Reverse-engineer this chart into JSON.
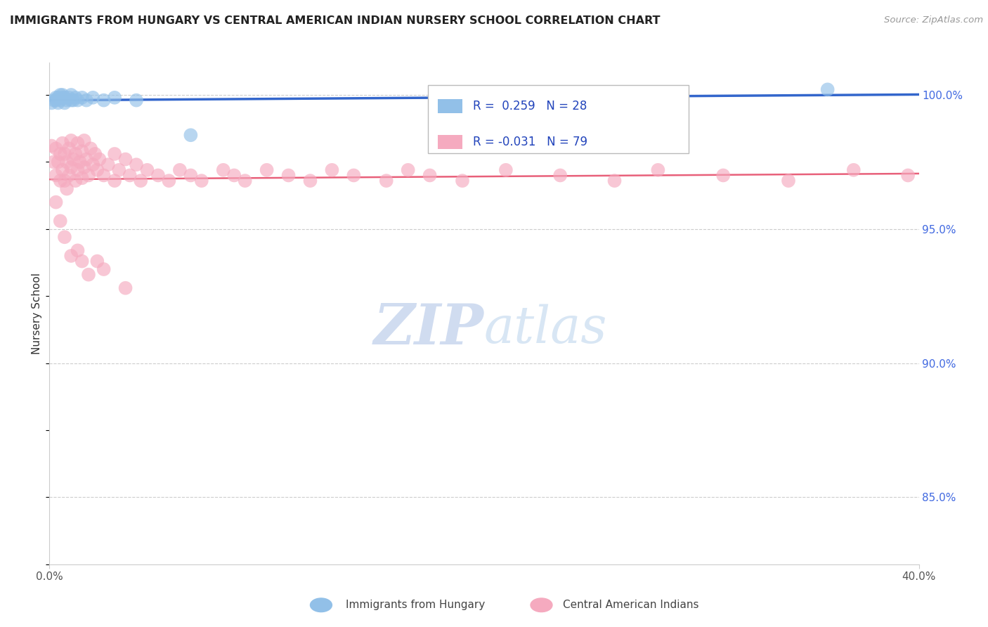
{
  "title": "IMMIGRANTS FROM HUNGARY VS CENTRAL AMERICAN INDIAN NURSERY SCHOOL CORRELATION CHART",
  "source": "Source: ZipAtlas.com",
  "ylabel": "Nursery School",
  "legend1_label": "Immigrants from Hungary",
  "legend2_label": "Central American Indians",
  "R_blue": 0.259,
  "N_blue": 28,
  "R_pink": -0.031,
  "N_pink": 79,
  "blue_color": "#92C0E8",
  "pink_color": "#F5AABF",
  "blue_line_color": "#3366CC",
  "pink_line_color": "#E8607A",
  "xmin": 0.0,
  "xmax": 0.4,
  "ymin": 0.825,
  "ymax": 1.012,
  "ytick_vals": [
    0.85,
    0.9,
    0.95,
    1.0
  ],
  "ytick_labels": [
    "85.0%",
    "90.0%",
    "95.0%",
    "100.0%"
  ],
  "blue_x": [
    0.001,
    0.002,
    0.003,
    0.003,
    0.004,
    0.004,
    0.005,
    0.005,
    0.006,
    0.006,
    0.007,
    0.007,
    0.008,
    0.009,
    0.01,
    0.01,
    0.011,
    0.012,
    0.013,
    0.015,
    0.017,
    0.02,
    0.025,
    0.03,
    0.04,
    0.065,
    0.185,
    0.358
  ],
  "blue_y": [
    0.997,
    0.998,
    0.998,
    0.999,
    0.997,
    0.999,
    0.998,
    1.0,
    0.999,
    1.0,
    0.997,
    0.999,
    0.998,
    0.999,
    0.998,
    1.0,
    0.998,
    0.999,
    0.998,
    0.999,
    0.998,
    0.999,
    0.998,
    0.999,
    0.998,
    0.985,
    0.999,
    1.002
  ],
  "pink_x": [
    0.001,
    0.002,
    0.003,
    0.003,
    0.004,
    0.005,
    0.005,
    0.006,
    0.006,
    0.007,
    0.007,
    0.008,
    0.008,
    0.009,
    0.009,
    0.01,
    0.01,
    0.011,
    0.012,
    0.012,
    0.013,
    0.013,
    0.014,
    0.015,
    0.015,
    0.016,
    0.016,
    0.017,
    0.018,
    0.019,
    0.02,
    0.021,
    0.022,
    0.023,
    0.025,
    0.027,
    0.03,
    0.03,
    0.032,
    0.035,
    0.037,
    0.04,
    0.042,
    0.045,
    0.05,
    0.055,
    0.06,
    0.065,
    0.07,
    0.08,
    0.085,
    0.09,
    0.1,
    0.11,
    0.12,
    0.13,
    0.14,
    0.155,
    0.165,
    0.175,
    0.19,
    0.21,
    0.235,
    0.26,
    0.28,
    0.31,
    0.34,
    0.37,
    0.395,
    0.003,
    0.005,
    0.007,
    0.01,
    0.013,
    0.015,
    0.018,
    0.022,
    0.025,
    0.035
  ],
  "pink_y": [
    0.981,
    0.975,
    0.98,
    0.97,
    0.975,
    0.978,
    0.968,
    0.972,
    0.982,
    0.968,
    0.978,
    0.965,
    0.975,
    0.97,
    0.98,
    0.973,
    0.983,
    0.976,
    0.968,
    0.978,
    0.972,
    0.982,
    0.975,
    0.969,
    0.979,
    0.973,
    0.983,
    0.976,
    0.97,
    0.98,
    0.974,
    0.978,
    0.972,
    0.976,
    0.97,
    0.974,
    0.968,
    0.978,
    0.972,
    0.976,
    0.97,
    0.974,
    0.968,
    0.972,
    0.97,
    0.968,
    0.972,
    0.97,
    0.968,
    0.972,
    0.97,
    0.968,
    0.972,
    0.97,
    0.968,
    0.972,
    0.97,
    0.968,
    0.972,
    0.97,
    0.968,
    0.972,
    0.97,
    0.968,
    0.972,
    0.97,
    0.968,
    0.972,
    0.97,
    0.96,
    0.953,
    0.947,
    0.94,
    0.942,
    0.938,
    0.933,
    0.938,
    0.935,
    0.928
  ]
}
